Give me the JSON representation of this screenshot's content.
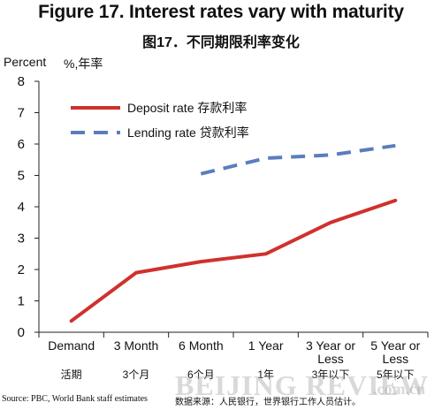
{
  "chart_data": {
    "type": "line",
    "title": "Figure 17. Interest rates vary with maturity",
    "subtitle": "图17．不同期限利率变化",
    "ylabel": "Percent",
    "ylabel_cn": "%,年率",
    "ylim": [
      0,
      8
    ],
    "yticks": [
      0,
      1,
      2,
      3,
      4,
      5,
      6,
      7,
      8
    ],
    "categories": [
      "Demand",
      "3 Month",
      "6 Month",
      "1 Year",
      "3 Year or Less",
      "5 Year or Less"
    ],
    "categories_cn": [
      "活期",
      "3个月",
      "6个月",
      "1年",
      "3年以下",
      "5年以下"
    ],
    "legend_position": "top-left",
    "series": [
      {
        "name": "Deposit rate 存款利率",
        "values": [
          0.36,
          1.9,
          2.25,
          2.5,
          3.5,
          4.2
        ],
        "color": "#d0312d",
        "style": "solid"
      },
      {
        "name": "Lending rate 贷款利率",
        "values": [
          null,
          null,
          5.05,
          5.55,
          5.65,
          5.95
        ],
        "color": "#5b7dbd",
        "style": "dashed"
      }
    ]
  },
  "source": "Source: PBC, World Bank staff estimates",
  "source_cn": "数据来源：人民银行，世界银行工作人员估计。",
  "watermark": "BEIJING REVIEW",
  "watermark_suffix": ".com.cn"
}
